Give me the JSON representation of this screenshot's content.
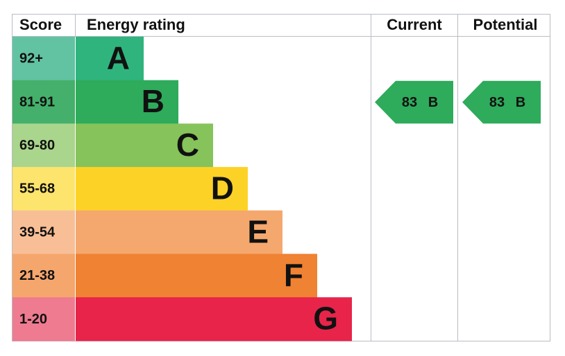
{
  "header": {
    "score": "Score",
    "rating": "Energy rating",
    "current": "Current",
    "potential": "Potential"
  },
  "rows": [
    {
      "score": "92+",
      "band": "A",
      "color": "#2fb47e",
      "score_color": "#62c3a3"
    },
    {
      "score": "81-91",
      "band": "B",
      "color": "#2eab5b",
      "score_color": "#44b06b"
    },
    {
      "score": "69-80",
      "band": "C",
      "color": "#86c35a",
      "score_color": "#a9d58c"
    },
    {
      "score": "55-68",
      "band": "D",
      "color": "#fdd226",
      "score_color": "#fde46c"
    },
    {
      "score": "39-54",
      "band": "E",
      "color": "#f5a86d",
      "score_color": "#f8bf97"
    },
    {
      "score": "21-38",
      "band": "F",
      "color": "#f08233",
      "score_color": "#f5a66d"
    },
    {
      "score": "1-20",
      "band": "G",
      "color": "#e8244a",
      "score_color": "#ee7b90"
    }
  ],
  "current": {
    "value": 83,
    "band": "B",
    "color": "#2eab5b"
  },
  "potential": {
    "value": 83,
    "band": "B",
    "color": "#2eab5b"
  }
}
